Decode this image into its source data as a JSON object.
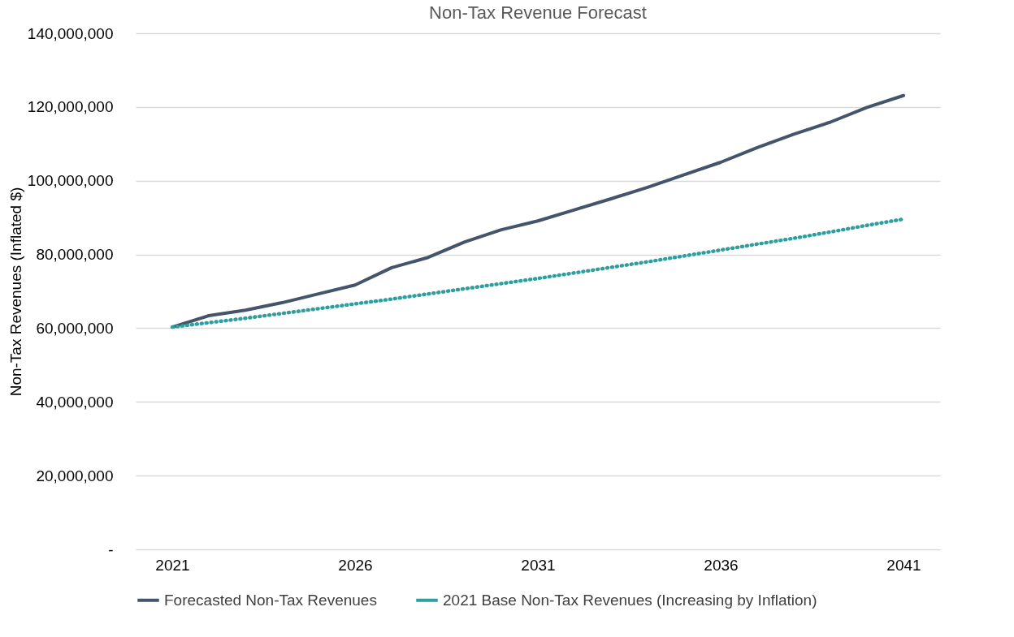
{
  "chart_data": {
    "type": "line",
    "title": "Non-Tax Revenue Forecast",
    "ylabel": "Non-Tax Revenues (Inflated $)",
    "x": [
      2021,
      2022,
      2023,
      2024,
      2025,
      2026,
      2027,
      2028,
      2029,
      2030,
      2031,
      2032,
      2033,
      2034,
      2035,
      2036,
      2037,
      2038,
      2039,
      2040,
      2041
    ],
    "series": [
      {
        "name": "Forecasted Non-Tax Revenues",
        "color": "#44546a",
        "line_style": "solid",
        "values": [
          60300000,
          63400000,
          64900000,
          66900000,
          69300000,
          71700000,
          76400000,
          79200000,
          83400000,
          86700000,
          89100000,
          92100000,
          95100000,
          98200000,
          101600000,
          105000000,
          109000000,
          112600000,
          115900000,
          119900000,
          123100000
        ]
      },
      {
        "name": "2021 Base Non-Tax Revenues (Increasing by Inflation)",
        "color": "#2e9e9e",
        "line_style": "dotted",
        "values": [
          60300000,
          61500000,
          62700000,
          64000000,
          65300000,
          66600000,
          67900000,
          69300000,
          70700000,
          72100000,
          73500000,
          75000000,
          76500000,
          78000000,
          79600000,
          81200000,
          82800000,
          84400000,
          86100000,
          87900000,
          89600000
        ]
      }
    ],
    "xlim": [
      2020,
      2042
    ],
    "xticks": [
      2021,
      2026,
      2031,
      2036,
      2041
    ],
    "ylim": [
      0,
      140000000
    ],
    "yticks": [
      {
        "value": 0,
        "label": "-"
      },
      {
        "value": 20000000,
        "label": "20,000,000"
      },
      {
        "value": 40000000,
        "label": "40,000,000"
      },
      {
        "value": 60000000,
        "label": "60,000,000"
      },
      {
        "value": 80000000,
        "label": "80,000,000"
      },
      {
        "value": 100000000,
        "label": "100,000,000"
      },
      {
        "value": 120000000,
        "label": "120,000,000"
      },
      {
        "value": 140000000,
        "label": "140,000,000"
      }
    ],
    "grid": "y",
    "legend": "bottom"
  }
}
